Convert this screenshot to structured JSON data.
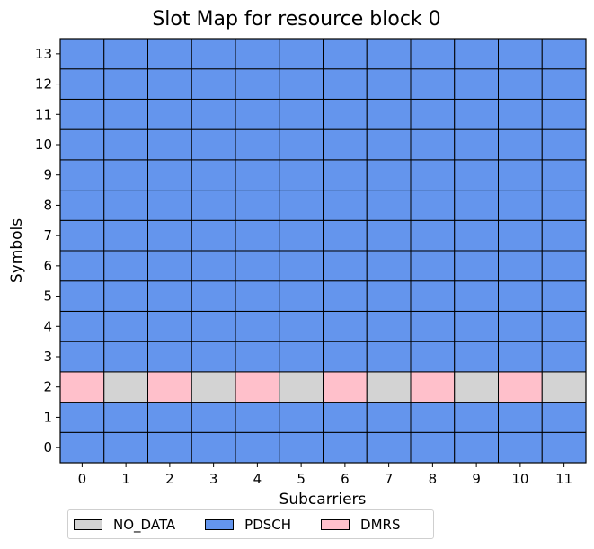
{
  "chart_data": {
    "type": "heatmap",
    "title": "Slot Map for resource block 0",
    "xlabel": "Subcarriers",
    "ylabel": "Symbols",
    "x_ticks": [
      "0",
      "1",
      "2",
      "3",
      "4",
      "5",
      "6",
      "7",
      "8",
      "9",
      "10",
      "11"
    ],
    "y_ticks": [
      "0",
      "1",
      "2",
      "3",
      "4",
      "5",
      "6",
      "7",
      "8",
      "9",
      "10",
      "11",
      "12",
      "13"
    ],
    "legend": {
      "placement": "bottom",
      "entries": [
        {
          "name": "NO_DATA",
          "color": "#d3d3d3"
        },
        {
          "name": "PDSCH",
          "color": "#6495ed"
        },
        {
          "name": "DMRS",
          "color": "#ffc0cb"
        }
      ]
    },
    "grid": [
      [
        "PDSCH",
        "PDSCH",
        "PDSCH",
        "PDSCH",
        "PDSCH",
        "PDSCH",
        "PDSCH",
        "PDSCH",
        "PDSCH",
        "PDSCH",
        "PDSCH",
        "PDSCH"
      ],
      [
        "PDSCH",
        "PDSCH",
        "PDSCH",
        "PDSCH",
        "PDSCH",
        "PDSCH",
        "PDSCH",
        "PDSCH",
        "PDSCH",
        "PDSCH",
        "PDSCH",
        "PDSCH"
      ],
      [
        "DMRS",
        "NO_DATA",
        "DMRS",
        "NO_DATA",
        "DMRS",
        "NO_DATA",
        "DMRS",
        "NO_DATA",
        "DMRS",
        "NO_DATA",
        "DMRS",
        "NO_DATA"
      ],
      [
        "PDSCH",
        "PDSCH",
        "PDSCH",
        "PDSCH",
        "PDSCH",
        "PDSCH",
        "PDSCH",
        "PDSCH",
        "PDSCH",
        "PDSCH",
        "PDSCH",
        "PDSCH"
      ],
      [
        "PDSCH",
        "PDSCH",
        "PDSCH",
        "PDSCH",
        "PDSCH",
        "PDSCH",
        "PDSCH",
        "PDSCH",
        "PDSCH",
        "PDSCH",
        "PDSCH",
        "PDSCH"
      ],
      [
        "PDSCH",
        "PDSCH",
        "PDSCH",
        "PDSCH",
        "PDSCH",
        "PDSCH",
        "PDSCH",
        "PDSCH",
        "PDSCH",
        "PDSCH",
        "PDSCH",
        "PDSCH"
      ],
      [
        "PDSCH",
        "PDSCH",
        "PDSCH",
        "PDSCH",
        "PDSCH",
        "PDSCH",
        "PDSCH",
        "PDSCH",
        "PDSCH",
        "PDSCH",
        "PDSCH",
        "PDSCH"
      ],
      [
        "PDSCH",
        "PDSCH",
        "PDSCH",
        "PDSCH",
        "PDSCH",
        "PDSCH",
        "PDSCH",
        "PDSCH",
        "PDSCH",
        "PDSCH",
        "PDSCH",
        "PDSCH"
      ],
      [
        "PDSCH",
        "PDSCH",
        "PDSCH",
        "PDSCH",
        "PDSCH",
        "PDSCH",
        "PDSCH",
        "PDSCH",
        "PDSCH",
        "PDSCH",
        "PDSCH",
        "PDSCH"
      ],
      [
        "PDSCH",
        "PDSCH",
        "PDSCH",
        "PDSCH",
        "PDSCH",
        "PDSCH",
        "PDSCH",
        "PDSCH",
        "PDSCH",
        "PDSCH",
        "PDSCH",
        "PDSCH"
      ],
      [
        "PDSCH",
        "PDSCH",
        "PDSCH",
        "PDSCH",
        "PDSCH",
        "PDSCH",
        "PDSCH",
        "PDSCH",
        "PDSCH",
        "PDSCH",
        "PDSCH",
        "PDSCH"
      ],
      [
        "PDSCH",
        "PDSCH",
        "PDSCH",
        "PDSCH",
        "PDSCH",
        "PDSCH",
        "PDSCH",
        "PDSCH",
        "PDSCH",
        "PDSCH",
        "PDSCH",
        "PDSCH"
      ],
      [
        "PDSCH",
        "PDSCH",
        "PDSCH",
        "PDSCH",
        "PDSCH",
        "PDSCH",
        "PDSCH",
        "PDSCH",
        "PDSCH",
        "PDSCH",
        "PDSCH",
        "PDSCH"
      ],
      [
        "PDSCH",
        "PDSCH",
        "PDSCH",
        "PDSCH",
        "PDSCH",
        "PDSCH",
        "PDSCH",
        "PDSCH",
        "PDSCH",
        "PDSCH",
        "PDSCH",
        "PDSCH"
      ]
    ]
  }
}
